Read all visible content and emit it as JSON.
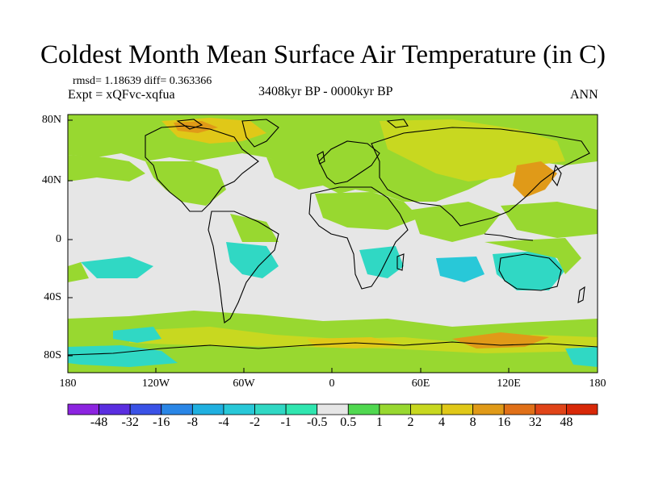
{
  "title": "Coldest Month Mean Surface Air Temperature (in C)",
  "stats": "rmsd= 1.18639 diff= 0.363366",
  "experiment": "Expt = xQFvc-xqfua",
  "period": "3408kyr BP - 0000kyr BP",
  "season": "ANN",
  "lat_ticks": [
    "80N",
    "40N",
    "0",
    "40S",
    "80S"
  ],
  "lon_ticks": [
    "180",
    "120W",
    "60W",
    "0",
    "60E",
    "120E",
    "180"
  ],
  "colorbar": {
    "colors": [
      "#8c24e0",
      "#5a2ee0",
      "#3a52e6",
      "#2a86e6",
      "#20b0e0",
      "#28c8d8",
      "#30d8c4",
      "#30e6b0",
      "#e6e6e6",
      "#50d850",
      "#98d830",
      "#c8d820",
      "#e0c818",
      "#e09a18",
      "#e07018",
      "#e04418",
      "#d82808"
    ],
    "labels": [
      "-48",
      "-32",
      "-16",
      "-8",
      "-4",
      "-2",
      "-1",
      "-0.5",
      "0.5",
      "1",
      "2",
      "4",
      "8",
      "16",
      "32",
      "48"
    ]
  }
}
